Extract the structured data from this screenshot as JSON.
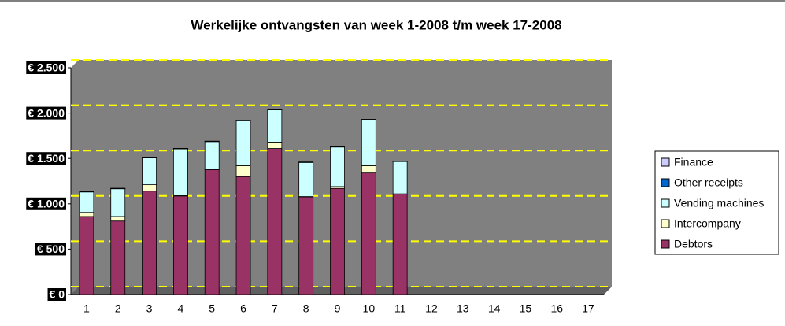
{
  "chart_data": {
    "type": "stacked-bar",
    "title": "Werkelijke ontvangsten van week 1-2008 t/m week 17-2008",
    "categories": [
      "1",
      "2",
      "3",
      "4",
      "5",
      "6",
      "7",
      "8",
      "9",
      "10",
      "11",
      "12",
      "13",
      "14",
      "15",
      "16",
      "17"
    ],
    "series": [
      {
        "name": "Debtors",
        "color": "#993366",
        "values": [
          860,
          810,
          1140,
          1090,
          1380,
          1300,
          1610,
          1080,
          1170,
          1340,
          1110,
          0,
          0,
          0,
          0,
          0,
          0
        ]
      },
      {
        "name": "Intercompany",
        "color": "#ffffcc",
        "values": [
          45,
          50,
          70,
          0,
          0,
          120,
          70,
          0,
          20,
          80,
          0,
          0,
          0,
          0,
          0,
          0,
          0
        ]
      },
      {
        "name": "Vending machines",
        "color": "#ccffff",
        "values": [
          230,
          310,
          300,
          520,
          310,
          500,
          360,
          380,
          440,
          510,
          360,
          0,
          0,
          0,
          0,
          0,
          0
        ]
      },
      {
        "name": "Other receipts",
        "color": "#0066cc",
        "values": [
          0,
          0,
          0,
          0,
          0,
          0,
          0,
          0,
          0,
          0,
          0,
          0,
          0,
          0,
          0,
          0,
          0
        ]
      },
      {
        "name": "Finance",
        "color": "#ccccff",
        "values": [
          0,
          0,
          0,
          0,
          0,
          0,
          0,
          0,
          0,
          0,
          0,
          0,
          0,
          0,
          0,
          0,
          0
        ]
      }
    ],
    "ylim": [
      0,
      2500
    ],
    "yticks": [
      {
        "value": 0,
        "label": "€ 0"
      },
      {
        "value": 500,
        "label": "€ 500"
      },
      {
        "value": 1000,
        "label": "€ 1.000"
      },
      {
        "value": 1500,
        "label": "€ 1.500"
      },
      {
        "value": 2000,
        "label": "€ 2.000"
      },
      {
        "value": 2500,
        "label": "€ 2.500"
      }
    ],
    "grid": true,
    "legend": "right"
  }
}
